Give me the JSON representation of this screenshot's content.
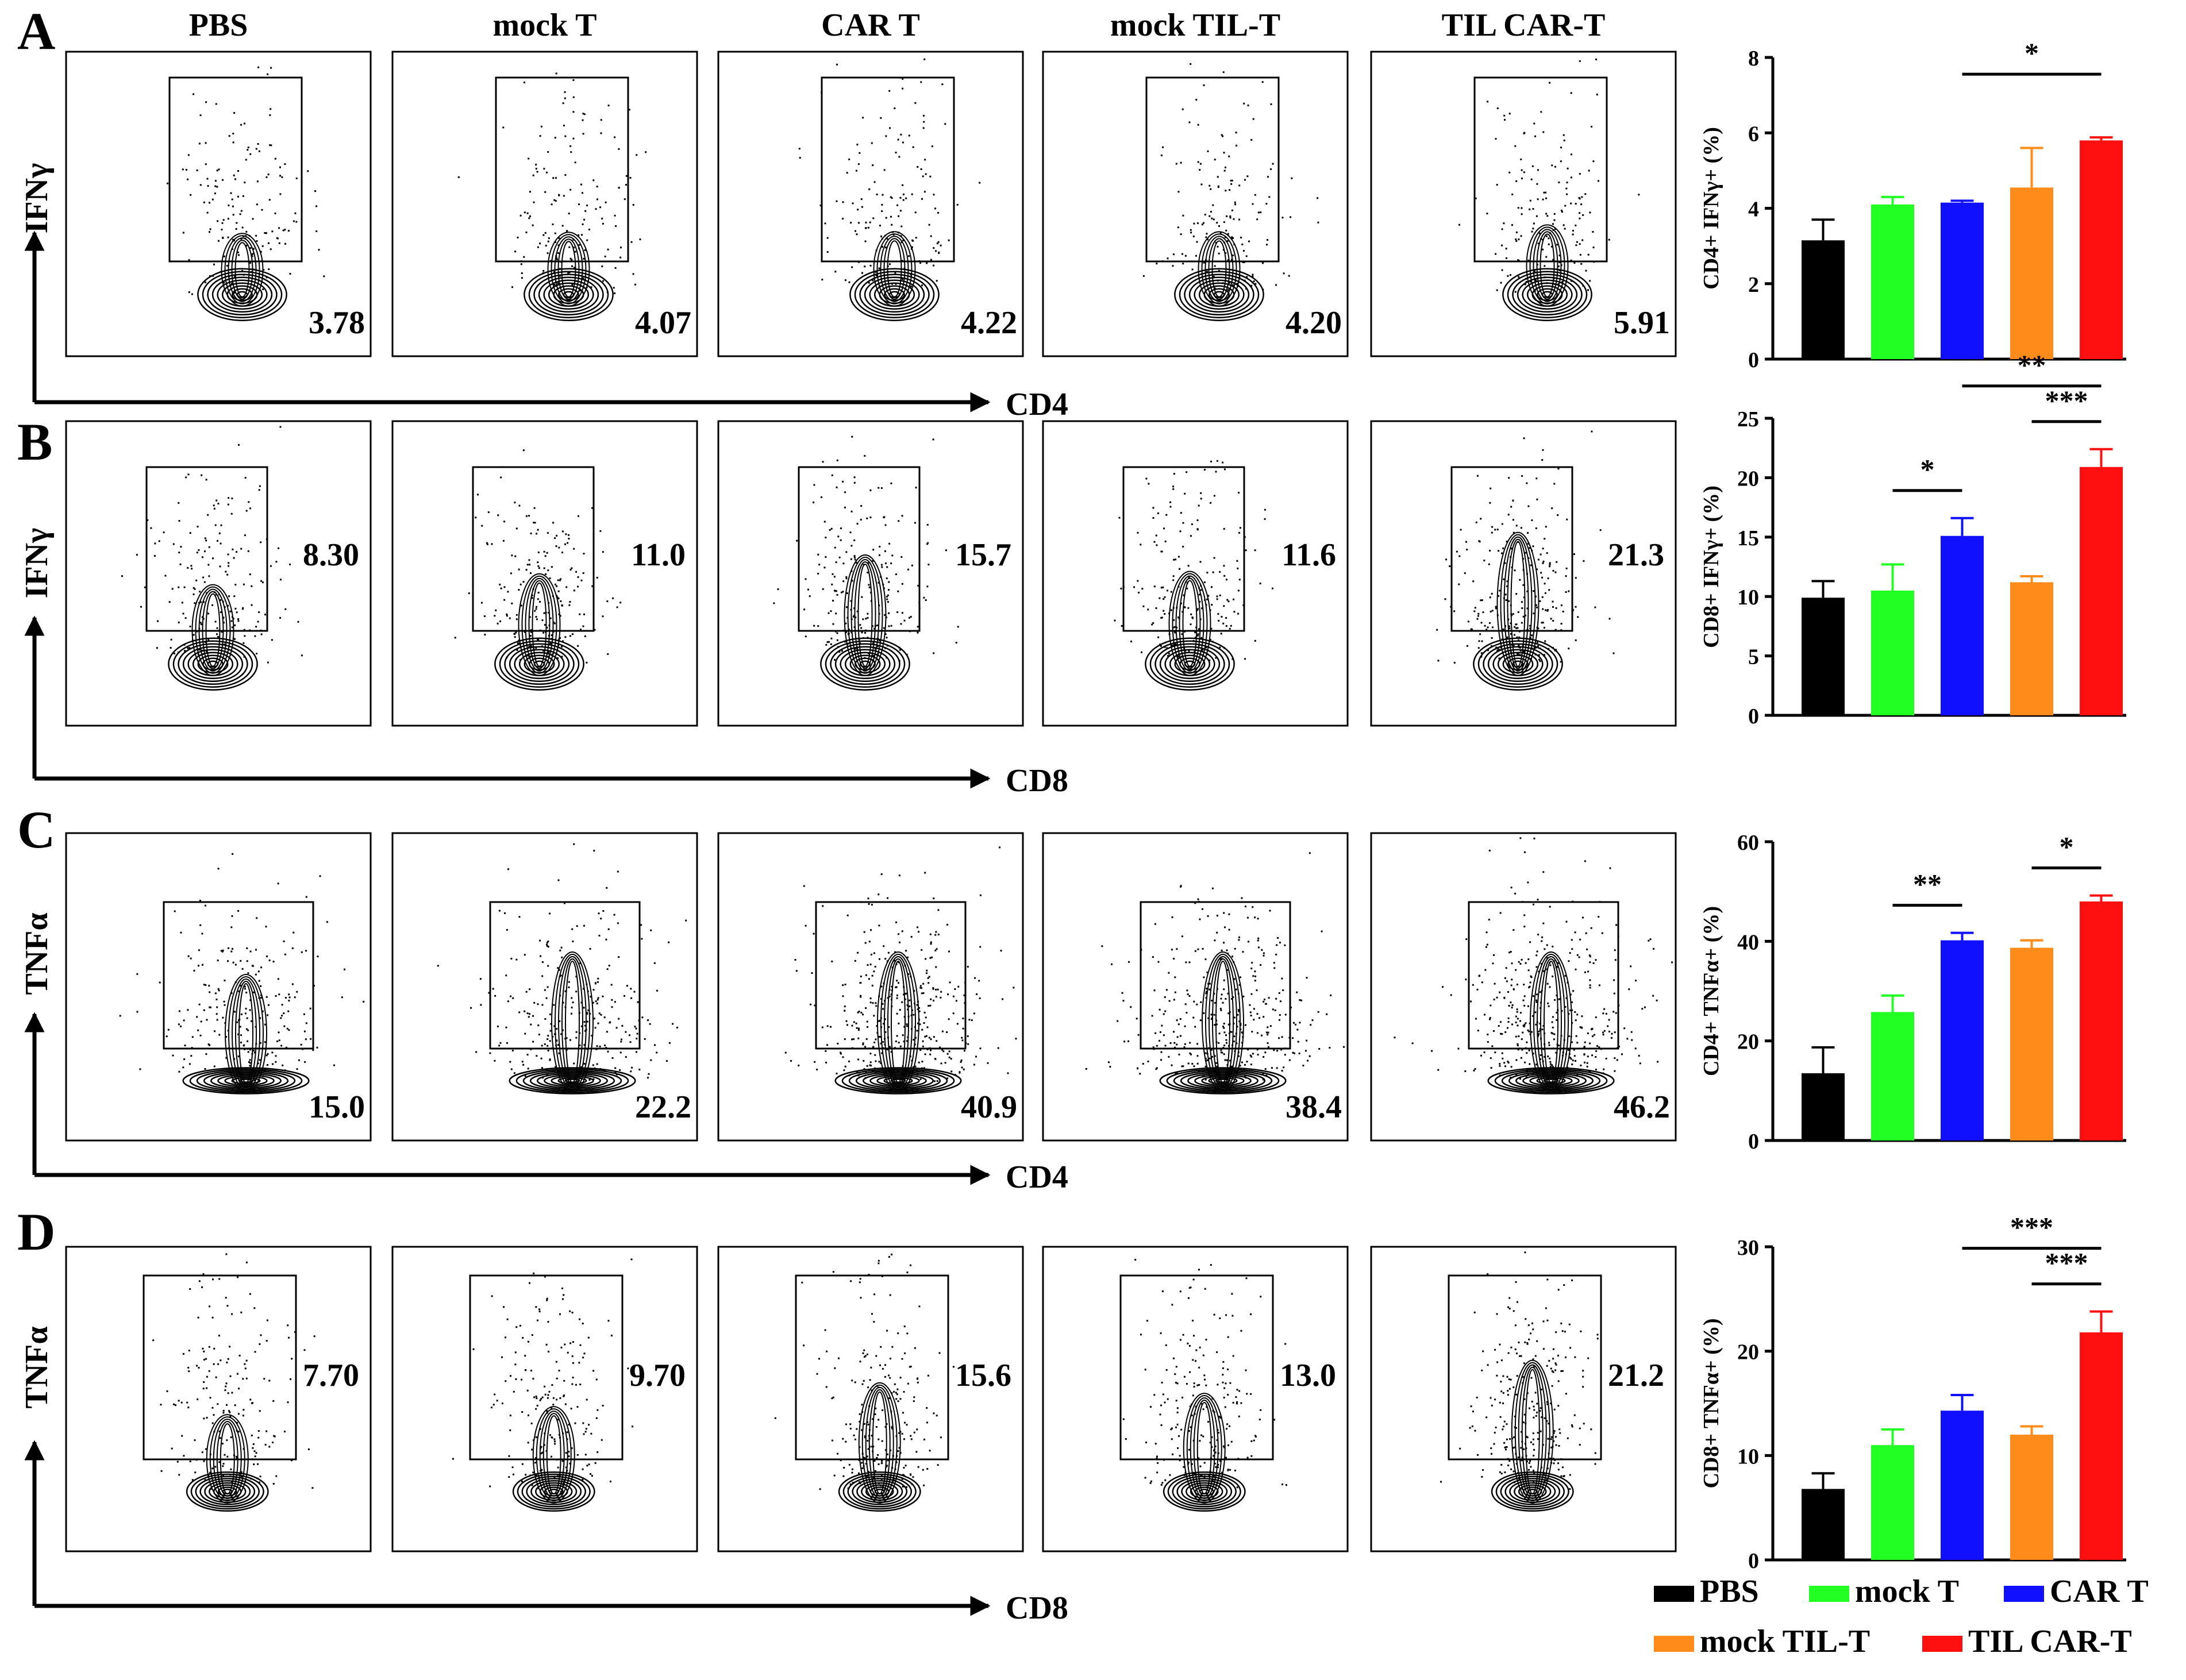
{
  "figure": {
    "panel_letters": [
      "A",
      "B",
      "C",
      "D"
    ],
    "groups": [
      "PBS",
      "mock T",
      "CAR T",
      "mock TIL-T",
      "TIL CAR-T"
    ],
    "group_colors": [
      "#000000",
      "#22ff22",
      "#1010ff",
      "#ff8c1a",
      "#ff1010"
    ]
  },
  "flow_rows": [
    {
      "letter": "A",
      "y_marker": "IFNγ",
      "x_marker": "CD4",
      "percents": [
        "3.78",
        "4.07",
        "4.22",
        "4.20",
        "5.91"
      ]
    },
    {
      "letter": "B",
      "y_marker": "IFNγ",
      "x_marker": "CD8",
      "percents": [
        "8.30",
        "11.0",
        "15.7",
        "11.6",
        "21.3"
      ]
    },
    {
      "letter": "C",
      "y_marker": "TNFα",
      "x_marker": "CD4",
      "percents": [
        "15.0",
        "22.2",
        "40.9",
        "38.4",
        "46.2"
      ]
    },
    {
      "letter": "D",
      "y_marker": "TNFα",
      "x_marker": "CD8",
      "percents": [
        "7.70",
        "9.70",
        "15.6",
        "13.0",
        "21.2"
      ]
    }
  ],
  "legend": {
    "items": [
      "PBS",
      "mock T",
      "CAR T",
      "mock TIL-T",
      "TIL CAR-T"
    ]
  },
  "chart_data": [
    {
      "type": "bar",
      "panel": "A",
      "categories": [
        "PBS",
        "mock T",
        "CAR T",
        "mock TIL-T",
        "TIL CAR-T"
      ],
      "values": [
        3.15,
        4.1,
        4.15,
        4.55,
        5.8
      ],
      "errors": [
        0.55,
        0.2,
        0.05,
        1.05,
        0.08
      ],
      "ylabel": "CD4+ IFNγ+ (%)",
      "ylim": [
        0,
        8
      ],
      "yticks": [
        "0",
        "2",
        "4",
        "6",
        "8"
      ],
      "ytick_values": [
        0,
        2,
        4,
        6,
        8
      ],
      "significance": [
        {
          "from": 2,
          "to": 4,
          "label": "*"
        }
      ]
    },
    {
      "type": "bar",
      "panel": "B",
      "categories": [
        "PBS",
        "mock T",
        "CAR T",
        "mock TIL-T",
        "TIL CAR-T"
      ],
      "values": [
        9.9,
        10.5,
        15.1,
        11.2,
        20.9
      ],
      "errors": [
        1.4,
        2.2,
        1.5,
        0.5,
        1.5
      ],
      "ylabel": "CD8+ IFNγ+ (%)",
      "ylim": [
        0,
        25
      ],
      "yticks": [
        "0",
        "5",
        "10",
        "15",
        "20",
        "25"
      ],
      "ytick_values": [
        0,
        5,
        10,
        15,
        20,
        25
      ],
      "significance": [
        {
          "from": 2,
          "to": 4,
          "label": "**"
        },
        {
          "from": 3,
          "to": 4,
          "label": "***"
        },
        {
          "from": 1,
          "to": 2,
          "label": "*"
        }
      ]
    },
    {
      "type": "bar",
      "panel": "C",
      "categories": [
        "PBS",
        "mock T",
        "CAR T",
        "mock TIL-T",
        "TIL CAR-T"
      ],
      "values": [
        13.5,
        25.8,
        40.2,
        38.7,
        48.0
      ],
      "errors": [
        5.2,
        3.3,
        1.5,
        1.5,
        1.2
      ],
      "ylabel": "CD4+ TNFα+ (%)",
      "ylim": [
        0,
        60
      ],
      "yticks": [
        "0",
        "20",
        "40",
        "60"
      ],
      "ytick_values": [
        0,
        20,
        40,
        60
      ],
      "significance": [
        {
          "from": 1,
          "to": 2,
          "label": "**"
        },
        {
          "from": 3,
          "to": 4,
          "label": "*"
        }
      ]
    },
    {
      "type": "bar",
      "panel": "D",
      "categories": [
        "PBS",
        "mock T",
        "CAR T",
        "mock TIL-T",
        "TIL CAR-T"
      ],
      "values": [
        6.8,
        11.0,
        14.3,
        12.0,
        21.8
      ],
      "errors": [
        1.5,
        1.5,
        1.5,
        0.8,
        2.0
      ],
      "ylabel": "CD8+ TNFα+ (%)",
      "ylim": [
        0,
        30
      ],
      "yticks": [
        "0",
        "10",
        "20",
        "30"
      ],
      "ytick_values": [
        0,
        10,
        20,
        30
      ],
      "significance": [
        {
          "from": 2,
          "to": 4,
          "label": "***"
        },
        {
          "from": 3,
          "to": 4,
          "label": "***"
        }
      ]
    }
  ]
}
